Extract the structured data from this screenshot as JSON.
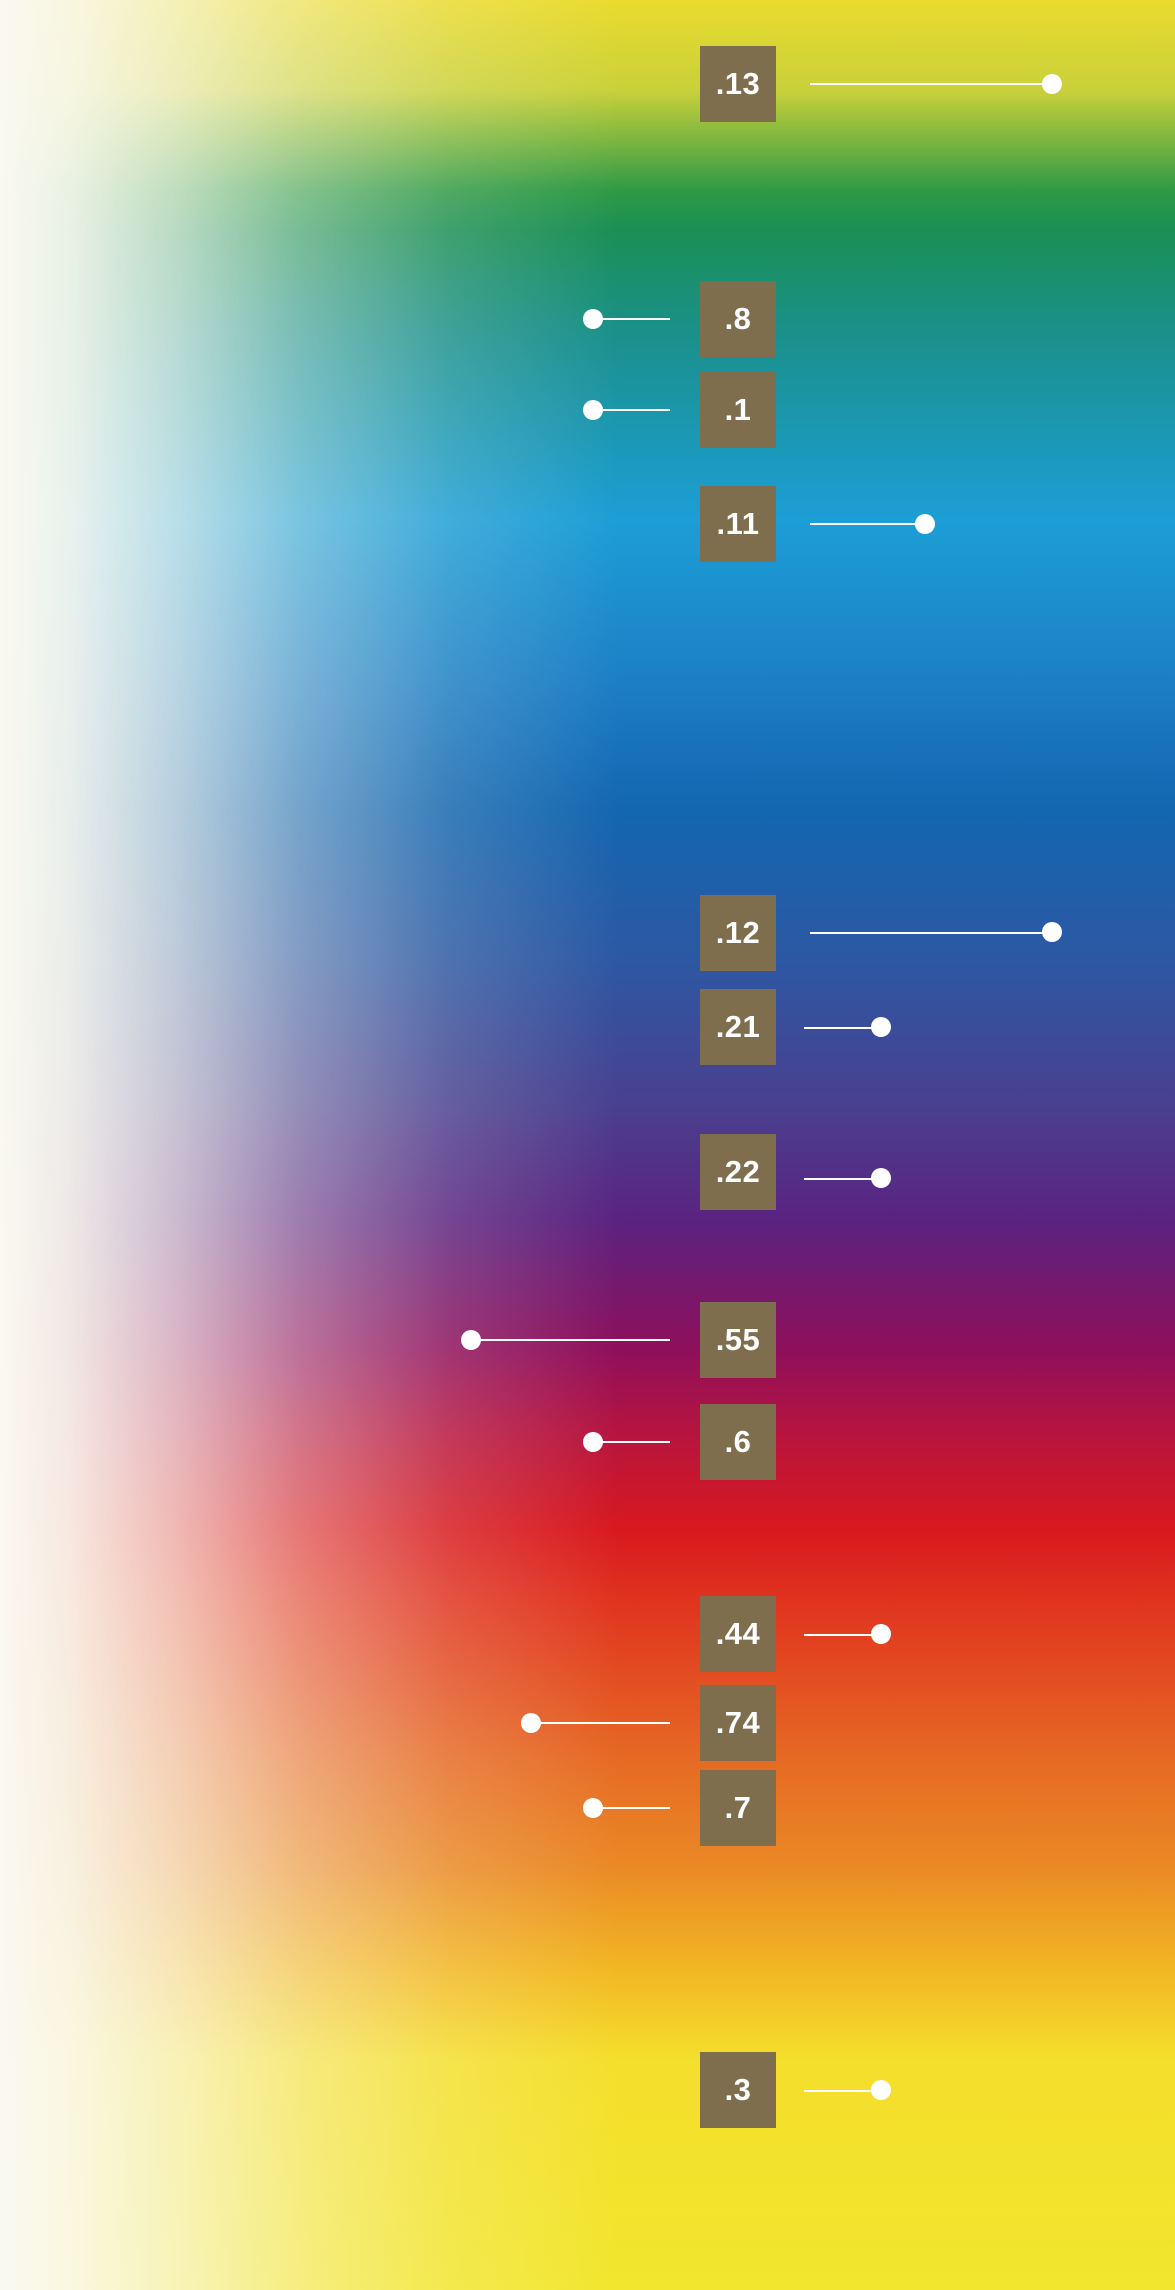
{
  "markers": [
    {
      "id": "m13",
      "label": ".13"
    },
    {
      "id": "m8",
      "label": ".8"
    },
    {
      "id": "m1",
      "label": ".1"
    },
    {
      "id": "m11",
      "label": ".11"
    },
    {
      "id": "m12",
      "label": ".12"
    },
    {
      "id": "m21",
      "label": ".21"
    },
    {
      "id": "m22",
      "label": ".22"
    },
    {
      "id": "m55",
      "label": ".55"
    },
    {
      "id": "m6",
      "label": ".6"
    },
    {
      "id": "m44",
      "label": ".44"
    },
    {
      "id": "m74",
      "label": ".74"
    },
    {
      "id": "m7",
      "label": ".7"
    },
    {
      "id": "m3",
      "label": ".3"
    }
  ],
  "colors": {
    "label_background": "#7e6e4d",
    "label_text": "#ffffff",
    "connector": "#ffffff"
  }
}
